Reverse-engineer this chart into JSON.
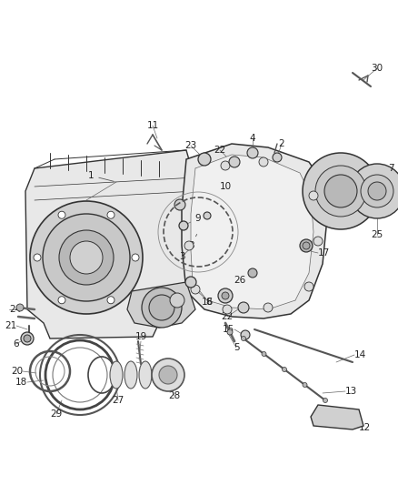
{
  "bg_color": "#ffffff",
  "fig_width": 4.38,
  "fig_height": 5.33,
  "dpi": 100,
  "label_fontsize": 7.5,
  "label_color": "#222222",
  "line_color": "#333333",
  "fill_light": "#e8e8e8",
  "fill_mid": "#d0d0d0",
  "fill_dark": "#b8b8b8"
}
